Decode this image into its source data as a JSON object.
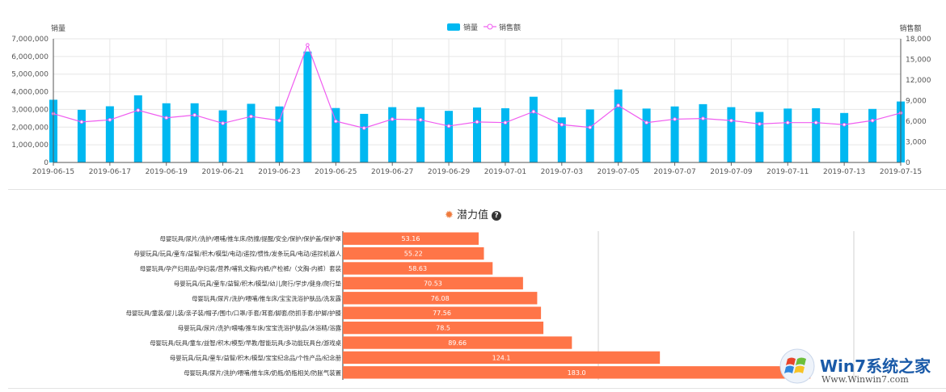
{
  "top_chart": {
    "chart_data": {
      "type": "bar+line",
      "y_left_label": "销量",
      "y_right_label": "销售额",
      "legend": [
        "销量",
        "销售额"
      ],
      "legend_position": "top-center",
      "y_left_range": [
        0,
        7000000
      ],
      "y_left_ticks": [
        "0",
        "1,000,000",
        "2,000,000",
        "3,000,000",
        "4,000,000",
        "5,000,000",
        "6,000,000",
        "7,000,000"
      ],
      "y_right_range": [
        0,
        18000
      ],
      "y_right_ticks": [
        "0",
        "3,000",
        "6,000",
        "9,000",
        "12,000",
        "15,000",
        "18,000"
      ],
      "dates": [
        "2019-06-15",
        "2019-06-16",
        "2019-06-17",
        "2019-06-18",
        "2019-06-19",
        "2019-06-20",
        "2019-06-21",
        "2019-06-22",
        "2019-06-23",
        "2019-06-24",
        "2019-06-25",
        "2019-06-26",
        "2019-06-27",
        "2019-06-28",
        "2019-06-29",
        "2019-06-30",
        "2019-07-01",
        "2019-07-02",
        "2019-07-03",
        "2019-07-04",
        "2019-07-05",
        "2019-07-06",
        "2019-07-07",
        "2019-07-08",
        "2019-07-09",
        "2019-07-10",
        "2019-07-11",
        "2019-07-12",
        "2019-07-13",
        "2019-07-14",
        "2019-07-15"
      ],
      "x_tick_labels": [
        "2019-06-15",
        "2019-06-17",
        "2019-06-19",
        "2019-06-21",
        "2019-06-23",
        "2019-06-25",
        "2019-06-27",
        "2019-06-29",
        "2019-07-01",
        "2019-07-03",
        "2019-07-05",
        "2019-07-07",
        "2019-07-09",
        "2019-07-11",
        "2019-07-13",
        "2019-07-15"
      ],
      "series": [
        {
          "name": "销量",
          "type": "bar",
          "color": "#00b8f1",
          "values": [
            3550000,
            2980000,
            3180000,
            3800000,
            3350000,
            3350000,
            2950000,
            3320000,
            3170000,
            6280000,
            3080000,
            2750000,
            3130000,
            3130000,
            2920000,
            3110000,
            3070000,
            3720000,
            2550000,
            3000000,
            4130000,
            3050000,
            3170000,
            3300000,
            3130000,
            2860000,
            3050000,
            3070000,
            2800000,
            3030000,
            3450000
          ]
        },
        {
          "name": "销售额",
          "type": "line",
          "color": "#f05cf0",
          "values": [
            7100,
            5900,
            6200,
            7600,
            6500,
            6900,
            5700,
            6700,
            6100,
            17100,
            6000,
            5000,
            6300,
            6200,
            5300,
            5900,
            5800,
            7400,
            5500,
            5100,
            8300,
            5800,
            6300,
            6400,
            6100,
            5600,
            5800,
            5800,
            5500,
            6100,
            7200
          ]
        }
      ],
      "grid": true
    }
  },
  "potential": {
    "title": "潜力值",
    "title_icon": "gear-icon",
    "help_icon": "question-icon",
    "help_glyph": "?",
    "bar_color": "#ff7548",
    "chart_data": {
      "type": "bar",
      "orientation": "horizontal",
      "x_range": [
        0,
        200
      ],
      "grid": true,
      "categories": [
        "母婴玩具/尿片/洗护/喂哺/推车床/防撞/提醒/安全/保护/保护盖/保护罩",
        "母婴玩具/玩具/童车/益智/积木/模型/电动/遥控/惯性/发条玩具/电动/遥控机器人",
        "母婴玩具/孕产妇用品/孕妇装/营养/哺乳文胸/内裤/产检裤/（文胸-内裤）套装",
        "母婴玩具/玩具/童车/益智/积木/模型/幼儿爬行/学步/健身/爬行垫",
        "母婴玩具/尿片/洗护/喂哺/推车床/宝宝洗浴护肤品/洗发露",
        "母婴玩具/童装/婴儿装/亲子装/帽子/围巾/口罩/手套/耳套/脚套/防抓手套/护脚/护膝",
        "母婴玩具/尿片/洗护/喂哺/推车床/宝宝洗浴护肤品/沐浴精/浴露",
        "母婴玩具/玩具/童车/益智/积木/模型/早教/智能玩具/多功能玩具台/游戏桌",
        "母婴玩具/玩具/童车/益智/积木/模型/宝宝纪念品/个性产品/纪念册",
        "母婴玩具/尿片/洗护/喂哺/推车床/奶瓶/奶瓶相关/防胀气装置"
      ],
      "values": [
        53.16,
        55.22,
        58.63,
        70.53,
        76.08,
        77.56,
        78.5,
        89.66,
        124.1,
        183.0
      ],
      "value_labels": [
        "53.16",
        "55.22",
        "58.63",
        "70.53",
        "76.08",
        "77.56",
        "78.5",
        "89.66",
        "124.1",
        "183.0"
      ]
    }
  },
  "watermark": {
    "text": "Win7系统之家",
    "url": "Www.Winwin7.com"
  }
}
